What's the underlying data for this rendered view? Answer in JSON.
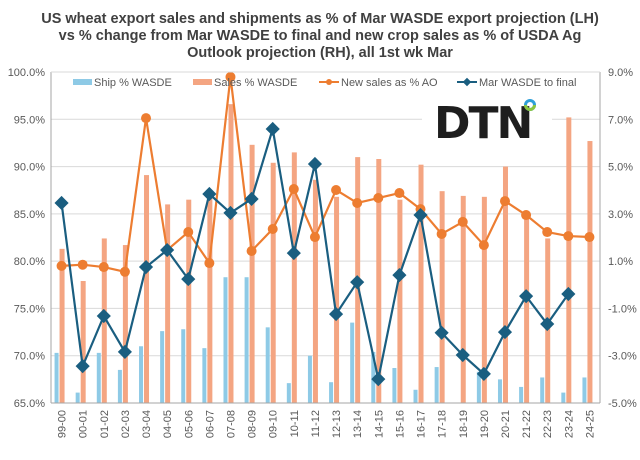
{
  "chart_data": {
    "type": "bar-line-combo",
    "title_lines": [
      "US wheat export sales and shipments as % of Mar WASDE export projection (LH)",
      "vs  % change from Mar WASDE to final  and new crop sales as % of USDA Ag",
      "Outlook projection (RH), all 1st wk Mar"
    ],
    "categories": [
      "99-00",
      "00-01",
      "01-02",
      "02-03",
      "03-04",
      "04-05",
      "05-06",
      "06-07",
      "07-08",
      "08-09",
      "09-10",
      "10-11",
      "11-12",
      "12-13",
      "13-14",
      "14-15",
      "15-16",
      "16-17",
      "17-18",
      "18-19",
      "19-20",
      "20-21",
      "21-22",
      "22-23",
      "23-24",
      "24-25"
    ],
    "left_axis": {
      "ylim": [
        65,
        100
      ],
      "ticks": [
        65,
        70,
        75,
        80,
        85,
        90,
        95,
        100
      ],
      "tick_labels": [
        "65.0%",
        "70.0%",
        "75.0%",
        "80.0%",
        "85.0%",
        "90.0%",
        "95.0%",
        "100.0%"
      ]
    },
    "right_axis": {
      "ylim": [
        -5,
        9
      ],
      "ticks": [
        -5,
        -3,
        -1,
        1,
        3,
        5,
        7,
        9
      ],
      "tick_labels": [
        "-5.0%",
        "-3.0%",
        "-1.0%",
        "1.0%",
        "3.0%",
        "5.0%",
        "7.0%",
        "9.0%"
      ]
    },
    "grid": true,
    "legend_position": "top",
    "series": [
      {
        "name": "Ship % WASDE",
        "kind": "bar",
        "axis": "left",
        "color": "#8ecae6",
        "values": [
          70.3,
          66.1,
          70.3,
          68.5,
          71.0,
          72.6,
          72.8,
          70.8,
          78.3,
          78.3,
          73.0,
          67.1,
          70.0,
          67.2,
          73.5,
          70.4,
          68.7,
          66.4,
          68.8,
          null,
          68.3,
          67.5,
          66.7,
          67.7,
          66.1,
          67.7
        ]
      },
      {
        "name": "Sales % WASDE",
        "kind": "bar",
        "axis": "left",
        "color": "#f4a582",
        "values": [
          81.3,
          77.9,
          82.4,
          81.7,
          89.1,
          86.0,
          86.5,
          87.0,
          96.6,
          92.3,
          90.4,
          91.5,
          88.6,
          86.8,
          91.0,
          90.8,
          86.5,
          90.2,
          87.4,
          86.9,
          86.8,
          90.0,
          84.8,
          82.4,
          95.2,
          92.7
        ]
      },
      {
        "name": "New sales as % AO",
        "kind": "line",
        "marker": "circle",
        "axis": "right",
        "color": "#ed7d31",
        "values": [
          0.8,
          0.85,
          0.75,
          0.55,
          7.05,
          1.47,
          2.23,
          0.92,
          8.79,
          1.43,
          2.36,
          4.05,
          2.02,
          4.01,
          3.46,
          3.67,
          3.88,
          3.2,
          2.15,
          2.66,
          1.68,
          3.54,
          2.95,
          2.23,
          2.06,
          2.02
        ]
      },
      {
        "name": "Mar WASDE to final",
        "kind": "line",
        "marker": "diamond",
        "axis": "right",
        "color": "#1a5e80",
        "values": [
          3.46,
          -3.44,
          -1.32,
          -2.84,
          0.75,
          1.47,
          0.24,
          3.84,
          3.04,
          3.63,
          6.59,
          1.34,
          5.11,
          -1.24,
          0.11,
          -3.99,
          0.41,
          2.95,
          -2.03,
          -2.97,
          -3.77,
          -2.0,
          -0.48,
          -1.66,
          -0.39,
          null
        ]
      }
    ]
  },
  "logo": {
    "text": "DTN",
    "ring_colors": [
      "#2f9fd8",
      "#8dc63f"
    ]
  }
}
